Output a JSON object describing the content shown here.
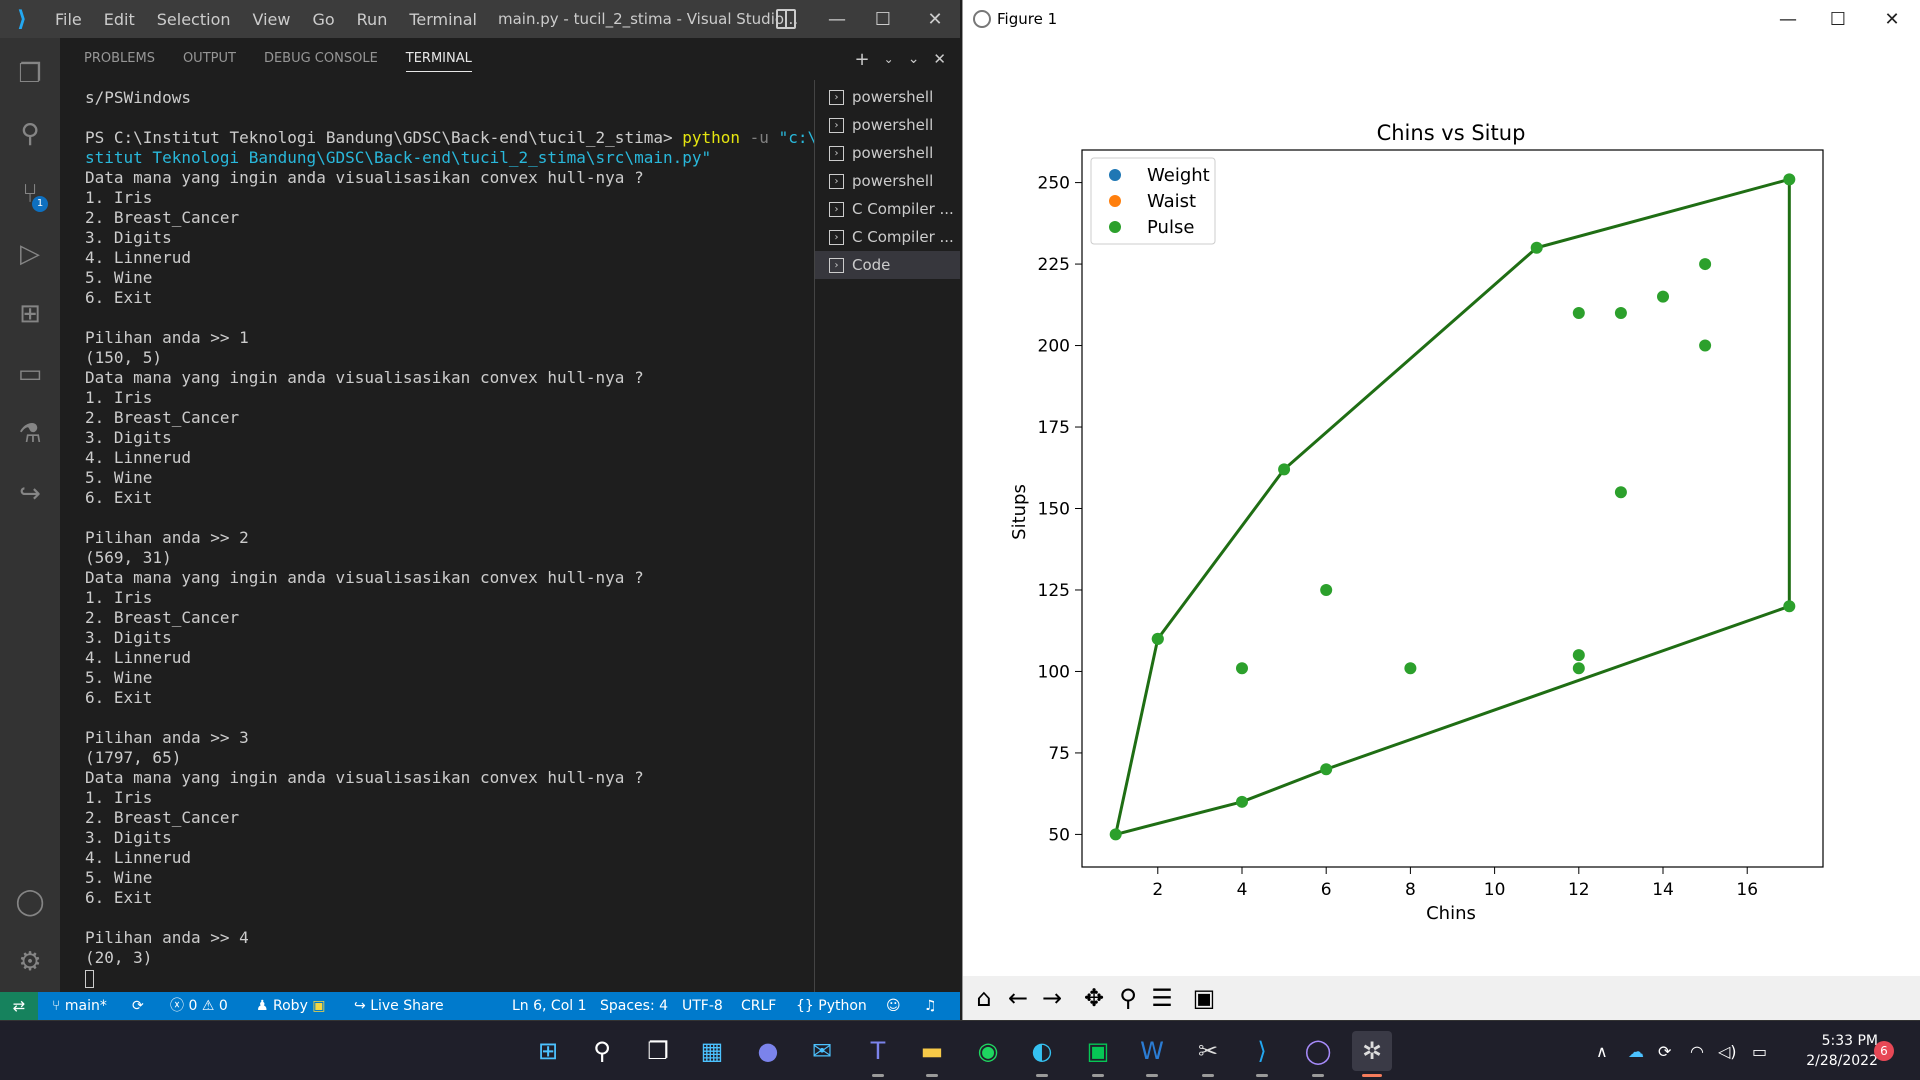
{
  "vscode": {
    "menu": [
      "File",
      "Edit",
      "Selection",
      "View",
      "Go",
      "Run",
      "Terminal"
    ],
    "window_title": "main.py - tucil_2_stima - Visual Studio...",
    "panel_tabs": [
      "PROBLEMS",
      "OUTPUT",
      "DEBUG CONSOLE",
      "TERMINAL"
    ],
    "active_panel_tab": "TERMINAL",
    "scm_badge": "1",
    "terminal": {
      "line0": "s/PSWindows",
      "prompt": "PS C:\\Institut Teknologi Bandung\\GDSC\\Back-end\\tucil_2_stima> ",
      "cmd": "python",
      "arg": " -u ",
      "path1": "\"c:\\In",
      "path2": "stitut Teknologi Bandung\\GDSC\\Back-end\\tucil_2_stima\\src\\main.py\"",
      "question": "Data mana yang ingin anda visualisasikan convex hull-nya ?",
      "options": [
        "1. Iris",
        "2. Breast_Cancer",
        "3. Digits",
        "4. Linnerud",
        "5. Wine",
        "6. Exit"
      ],
      "choice1": "Pilihan anda >> 1",
      "result1": "(150, 5)",
      "choice2": "Pilihan anda >> 2",
      "result2": "(569, 31)",
      "choice3": "Pilihan anda >> 3",
      "result3": "(1797, 65)",
      "choice4": "Pilihan anda >> 4",
      "result4": "(20, 3)"
    },
    "terminal_list": [
      "powershell",
      "powershell",
      "powershell",
      "powershell",
      "C Compiler ...",
      "C Compiler ...",
      "Code"
    ],
    "status": {
      "branch": "main*",
      "errors": "0",
      "warnings": "0",
      "user": "Roby",
      "liveshare": "Live Share",
      "position": "Ln 6, Col 1",
      "spaces": "Spaces: 4",
      "encoding": "UTF-8",
      "eol": "CRLF",
      "language": "Python"
    }
  },
  "figure": {
    "window_title": "Figure 1"
  },
  "chart_data": {
    "type": "scatter",
    "title": "Chins vs Situp",
    "xlabel": "Chins",
    "ylabel": "Situps",
    "xlim": [
      0.2,
      17.8
    ],
    "ylim": [
      40,
      260
    ],
    "xticks": [
      2,
      4,
      6,
      8,
      10,
      12,
      14,
      16
    ],
    "yticks": [
      50,
      75,
      100,
      125,
      150,
      175,
      200,
      225,
      250
    ],
    "legend_position": "upper-left",
    "legend": [
      {
        "name": "Weight",
        "color": "#1f77b4"
      },
      {
        "name": "Waist",
        "color": "#ff7f0e"
      },
      {
        "name": "Pulse",
        "color": "#2ca02c"
      }
    ],
    "points": [
      [
        5,
        162
      ],
      [
        2,
        110
      ],
      [
        12,
        101
      ],
      [
        12,
        105
      ],
      [
        13,
        155
      ],
      [
        4,
        101
      ],
      [
        8,
        101
      ],
      [
        6,
        125
      ],
      [
        15,
        200
      ],
      [
        17,
        251
      ],
      [
        17,
        120
      ],
      [
        13,
        210
      ],
      [
        14,
        215
      ],
      [
        1,
        50
      ],
      [
        6,
        70
      ],
      [
        12,
        210
      ],
      [
        4,
        60
      ],
      [
        11,
        230
      ],
      [
        15,
        225
      ],
      [
        2,
        110
      ]
    ],
    "point_color": "#2ca02c",
    "hull": [
      [
        1,
        50
      ],
      [
        4,
        60
      ],
      [
        6,
        70
      ],
      [
        17,
        120
      ],
      [
        17,
        251
      ],
      [
        11,
        230
      ],
      [
        5,
        162
      ],
      [
        2,
        110
      ],
      [
        1,
        50
      ]
    ],
    "hull_color": "#1f6e14"
  },
  "taskbar": {
    "time": "5:33 PM",
    "date": "2/28/2022",
    "notifications": "6"
  }
}
